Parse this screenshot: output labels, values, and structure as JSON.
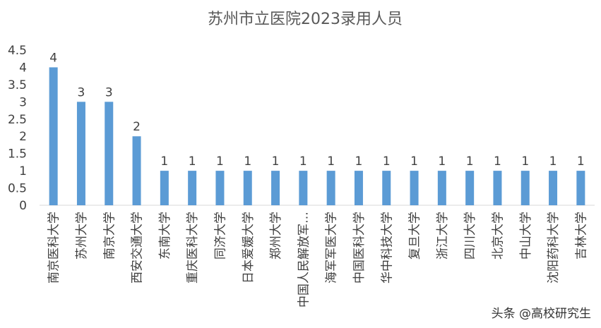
{
  "chart_data": {
    "type": "bar",
    "title": "苏州市立医院2023录用人员",
    "xlabel": "",
    "ylabel": "",
    "ylim": [
      0,
      4.5
    ],
    "yticks": [
      "0",
      "0.5",
      "1",
      "1.5",
      "2",
      "2.5",
      "3",
      "3.5",
      "4",
      "4.5"
    ],
    "grid": false,
    "legend": "none",
    "bar_color": "#5B9BD5",
    "categories": [
      "南京医科大学",
      "苏州大学",
      "南京大学",
      "西安交通大学",
      "东南大学",
      "重庆医科大学",
      "同济大学",
      "日本爱媛大学",
      "郑州大学",
      "中国人民解放军…",
      "海军军医大学",
      "中国医科大学",
      "华中科技大学",
      "复旦大学",
      "浙江大学",
      "四川大学",
      "北京大学",
      "中山大学",
      "沈阳药科大学",
      "吉林大学"
    ],
    "values": [
      4,
      3,
      3,
      2,
      1,
      1,
      1,
      1,
      1,
      1,
      1,
      1,
      1,
      1,
      1,
      1,
      1,
      1,
      1,
      1
    ]
  },
  "watermark": "头条 @高校研究生"
}
